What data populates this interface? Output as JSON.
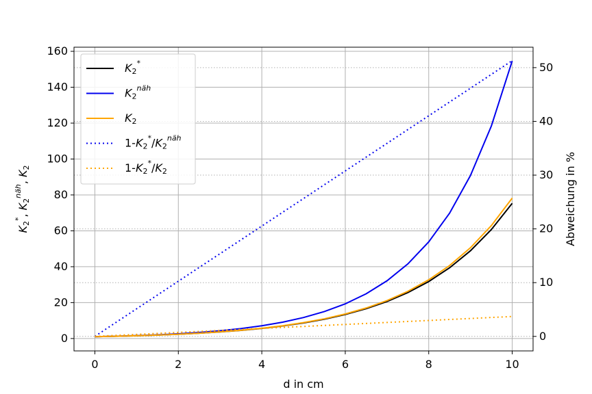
{
  "chart_data": {
    "type": "line",
    "xlabel": "d in cm",
    "ylabel": "$K_2^*$, $K_2^{näh}$, $K_2$",
    "y2label": "Abweichung in %",
    "x": [
      0,
      0.5,
      1,
      1.5,
      2,
      2.5,
      3,
      3.5,
      4,
      4.5,
      5,
      5.5,
      6,
      6.5,
      7,
      7.5,
      8,
      8.5,
      9,
      9.5,
      10
    ],
    "series": [
      {
        "name": "$K_2^*$",
        "color": "#000000",
        "style": "solid",
        "values": [
          1.0,
          1.24,
          1.54,
          1.91,
          2.38,
          2.95,
          3.66,
          4.54,
          5.64,
          7.0,
          8.69,
          10.78,
          13.38,
          16.61,
          20.61,
          25.58,
          31.75,
          39.4,
          48.9,
          60.69,
          75.32
        ]
      },
      {
        "name": "$K_2^{näh}$",
        "color": "#0000ee",
        "style": "solid",
        "values": [
          1.0,
          1.27,
          1.62,
          2.07,
          2.65,
          3.38,
          4.33,
          5.53,
          7.1,
          9.1,
          11.69,
          15.02,
          19.33,
          24.92,
          32.16,
          41.57,
          53.85,
          69.86,
          90.84,
          118.37,
          154.66
        ]
      },
      {
        "name": "$K_2$",
        "color": "#ffa500",
        "style": "solid",
        "values": [
          1.0,
          1.24,
          1.55,
          1.92,
          2.4,
          2.98,
          3.7,
          4.6,
          5.72,
          7.12,
          8.85,
          10.99,
          13.68,
          17.01,
          21.15,
          26.31,
          32.71,
          40.68,
          50.58,
          62.9,
          78.22
        ]
      },
      {
        "name": "1-$K_2^*/K_2^{näh}$",
        "color": "#0000ee",
        "style": "dotted",
        "axis": "y2",
        "values": [
          0,
          2.57,
          5.13,
          7.7,
          10.26,
          12.83,
          15.39,
          17.96,
          20.52,
          23.09,
          25.65,
          28.22,
          30.78,
          33.35,
          35.91,
          38.48,
          41.04,
          43.61,
          46.17,
          48.74,
          51.3
        ]
      },
      {
        "name": "1-$K_2^*/K_2$",
        "color": "#ffa500",
        "style": "dotted",
        "axis": "y2",
        "values": [
          0,
          0.19,
          0.37,
          0.56,
          0.74,
          0.93,
          1.11,
          1.3,
          1.48,
          1.67,
          1.85,
          2.04,
          2.22,
          2.41,
          2.59,
          2.78,
          2.96,
          3.15,
          3.33,
          3.52,
          3.7
        ]
      }
    ],
    "xlim": [
      -0.5,
      10.5
    ],
    "xticks": [
      0,
      2,
      4,
      6,
      8,
      10
    ],
    "ylim": [
      -6.9,
      162.3
    ],
    "yticks": [
      0,
      20,
      40,
      60,
      80,
      100,
      120,
      140,
      160
    ],
    "y2lim": [
      -2.7,
      53.8
    ],
    "y2ticks": [
      0,
      10,
      20,
      30,
      40,
      50
    ],
    "grid": true,
    "legend": "upper left"
  }
}
